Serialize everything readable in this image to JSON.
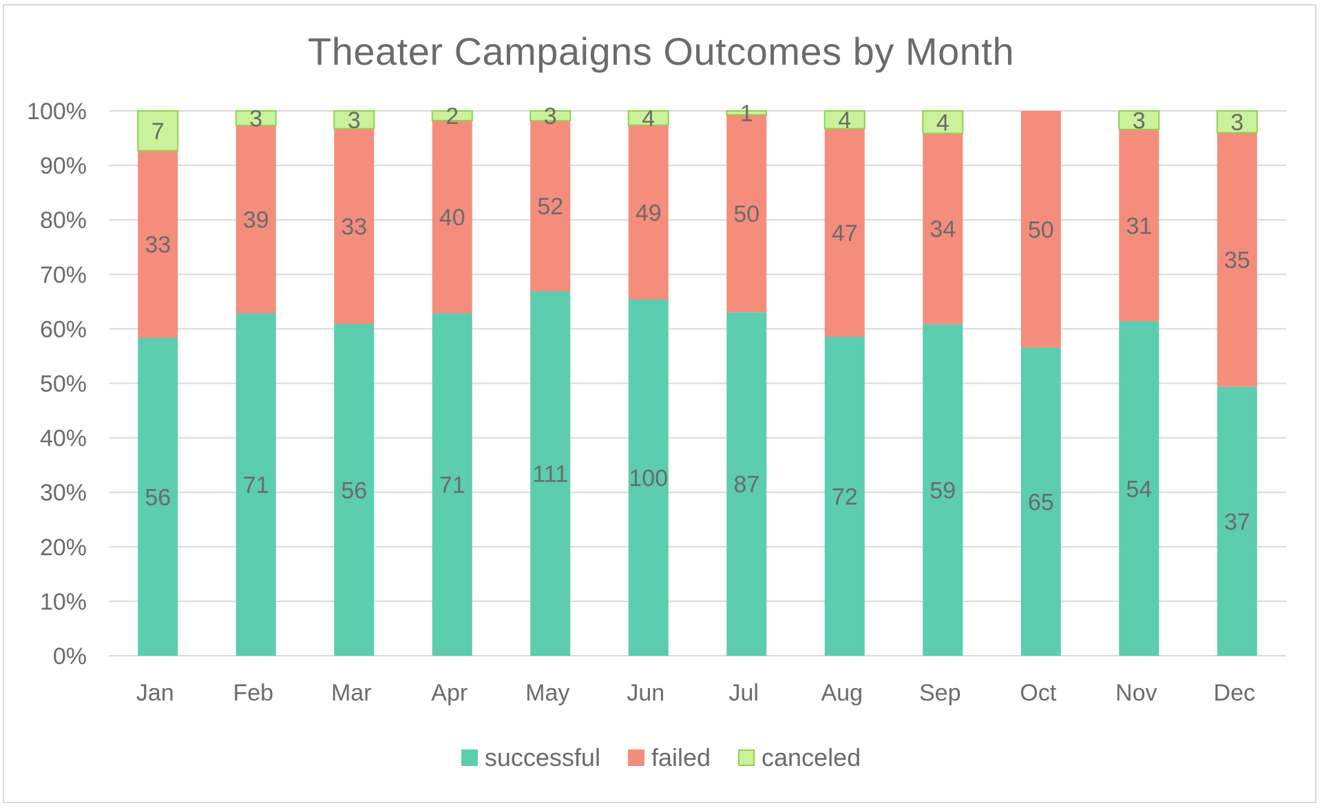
{
  "chart_data": {
    "type": "bar",
    "stacked": "percent",
    "title": "Theater Campaigns Outcomes by Month",
    "categories": [
      "Jan",
      "Feb",
      "Mar",
      "Apr",
      "May",
      "Jun",
      "Jul",
      "Aug",
      "Sep",
      "Oct",
      "Nov",
      "Dec"
    ],
    "series": [
      {
        "name": "successful",
        "color": "#5ccdae",
        "values": [
          56,
          71,
          56,
          71,
          111,
          100,
          87,
          72,
          59,
          65,
          54,
          37
        ]
      },
      {
        "name": "failed",
        "color": "#f58d7c",
        "values": [
          33,
          39,
          33,
          40,
          52,
          49,
          50,
          47,
          34,
          50,
          31,
          35
        ]
      },
      {
        "name": "canceled",
        "color": "#c9f29b",
        "border": "#8fd14f",
        "values": [
          7,
          3,
          3,
          2,
          3,
          4,
          1,
          4,
          4,
          0,
          3,
          3
        ]
      }
    ],
    "y_ticks": [
      "0%",
      "10%",
      "20%",
      "30%",
      "40%",
      "50%",
      "60%",
      "70%",
      "80%",
      "90%",
      "100%"
    ],
    "ylim": [
      0,
      100
    ],
    "grid": true,
    "legend_position": "bottom"
  }
}
